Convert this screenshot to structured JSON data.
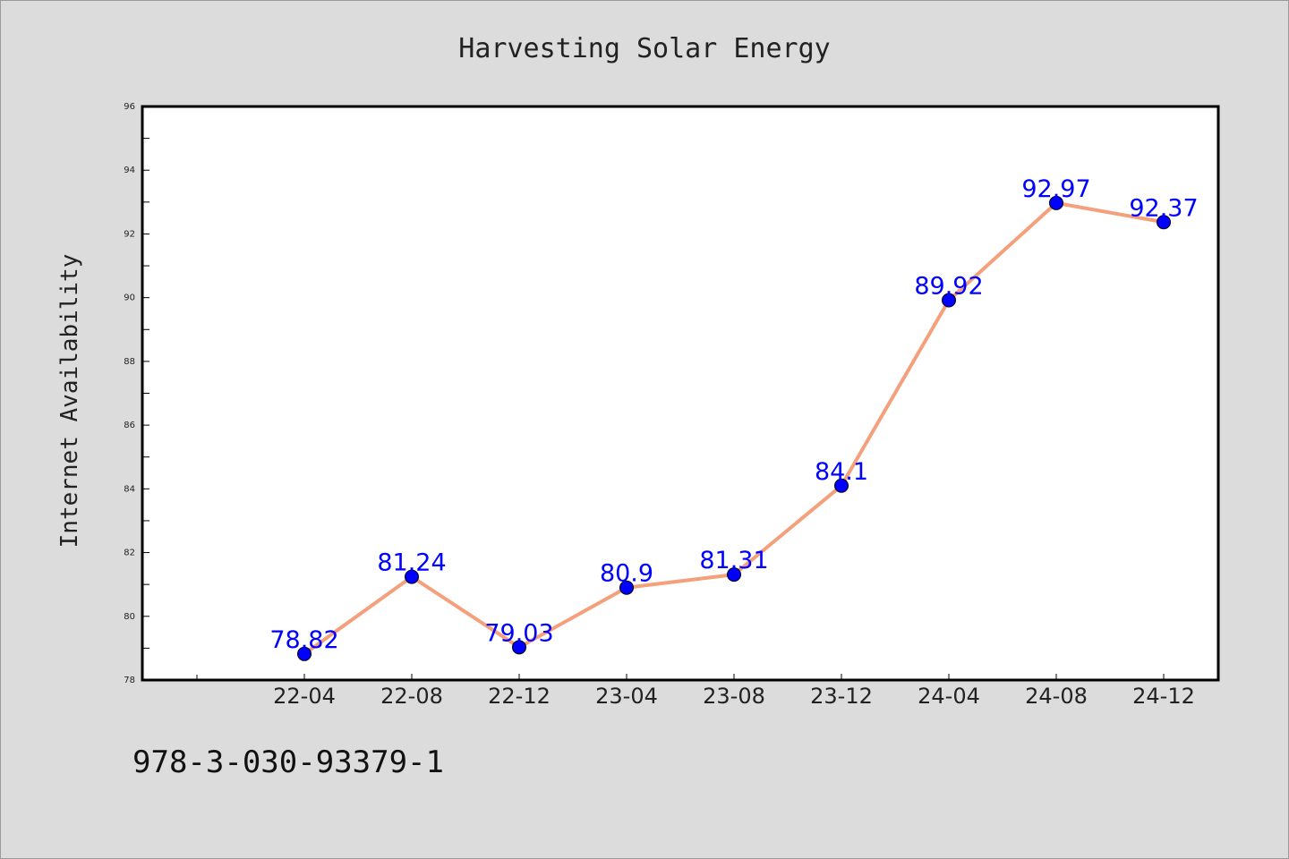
{
  "footer": {
    "code": "978-3-030-93379-1"
  },
  "colors": {
    "background": "#dcdcdc",
    "plot_background": "#ffffff",
    "line": "#f4a07c",
    "marker": "#0000ff",
    "data_label": "#0000ff",
    "text": "#222222"
  },
  "chart_data": {
    "type": "line",
    "title": "Harvesting Solar Energy",
    "xlabel": "",
    "ylabel": "Internet Availability",
    "categories": [
      "22-04",
      "22-08",
      "22-12",
      "23-04",
      "23-08",
      "23-12",
      "24-04",
      "24-08",
      "24-12"
    ],
    "series": [
      {
        "values": [
          78.82,
          81.24,
          79.03,
          80.9,
          81.31,
          84.1,
          89.92,
          92.97,
          92.37
        ]
      }
    ],
    "data_labels": [
      "78.82",
      "81.24",
      "79.03",
      "80.9",
      "81.31",
      "84.1",
      "89.92",
      "92.97",
      "92.37"
    ],
    "ylim": [
      78,
      96
    ],
    "yticks": [
      "78",
      "80",
      "82",
      "84",
      "86",
      "88",
      "90",
      "92",
      "94",
      "96"
    ],
    "grid": false,
    "legend": "none"
  }
}
